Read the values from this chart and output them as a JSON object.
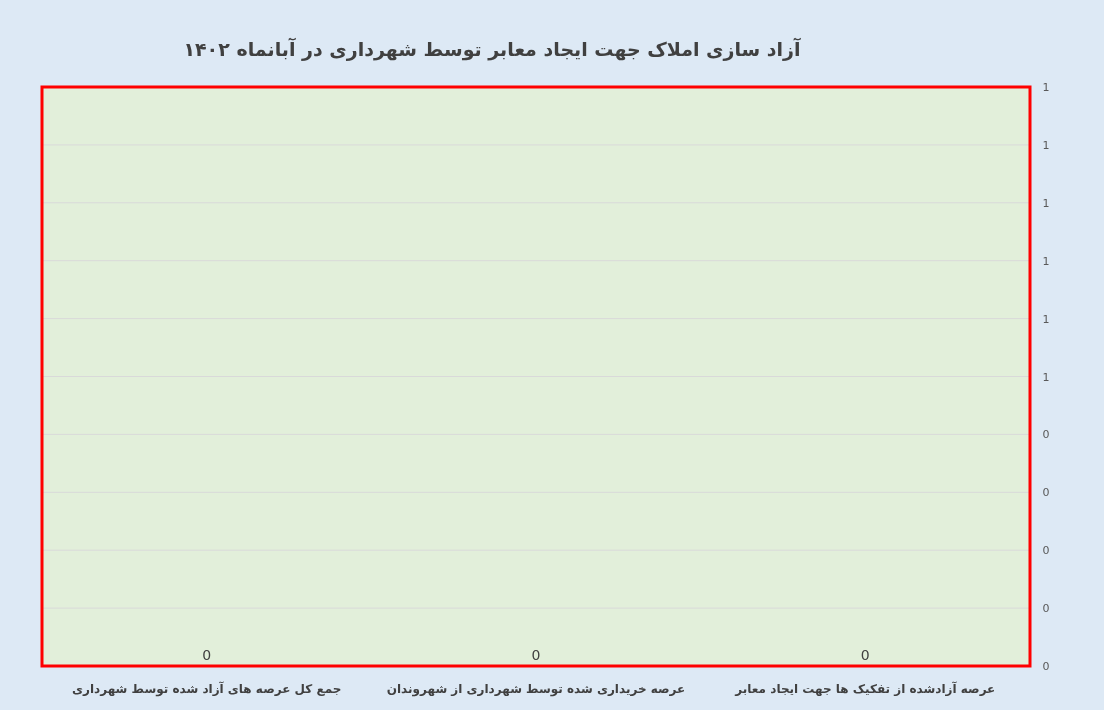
{
  "chart_data": {
    "type": "bar",
    "title": "آزاد سازی املاک جهت ایجاد معابر توسط شهرداری در آبانماه ۱۴۰۲",
    "categories": [
      "جمع کل عرصه های آزاد شده توسط شهرداری",
      "عرصه خریداری شده توسط شهرداری از شهروندان",
      "عرصه آزادشده از تفکیک ها جهت ایجاد معابر"
    ],
    "values": [
      0,
      0,
      0
    ],
    "data_labels": true,
    "ylim": [
      0,
      1
    ],
    "yticks": [
      {
        "value": 0,
        "label": "0"
      },
      {
        "value": 0.1,
        "label": "0"
      },
      {
        "value": 0.2,
        "label": "0"
      },
      {
        "value": 0.3,
        "label": "0"
      },
      {
        "value": 0.4,
        "label": "0"
      },
      {
        "value": 0.5,
        "label": "1"
      },
      {
        "value": 0.6,
        "label": "1"
      },
      {
        "value": 0.7,
        "label": "1"
      },
      {
        "value": 0.8,
        "label": "1"
      },
      {
        "value": 0.9,
        "label": "1"
      },
      {
        "value": 1,
        "label": "1"
      }
    ],
    "grid": "y"
  }
}
